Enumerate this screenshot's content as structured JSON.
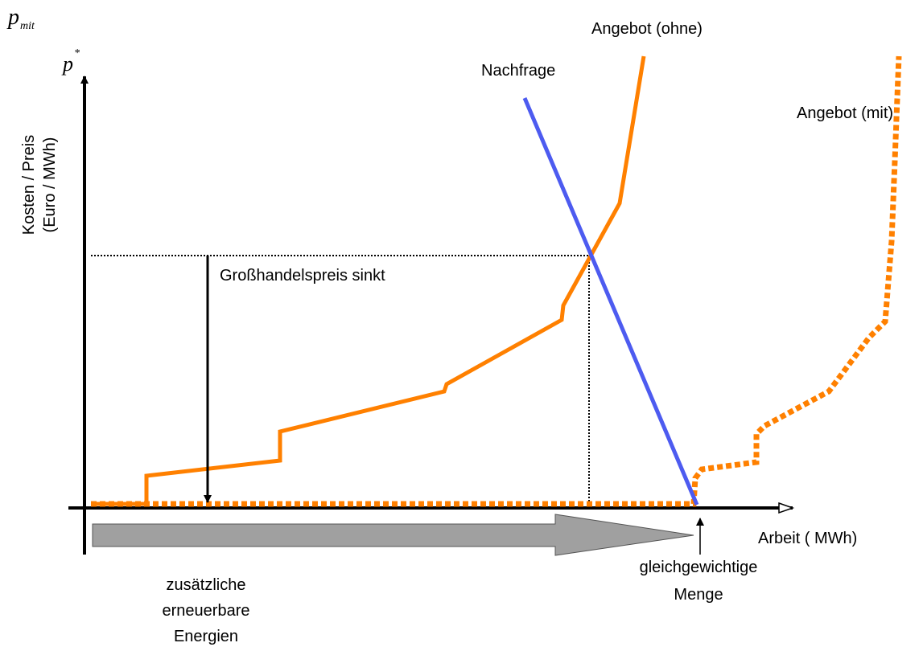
{
  "labels": {
    "p_mit": {
      "symbol": "p",
      "subscript": "mit"
    },
    "p_star": {
      "symbol": "p",
      "superscript": "*"
    },
    "y_axis": [
      "Kosten / Preis",
      "(Euro / MWh)"
    ],
    "x_axis": "Arbeit ( MWh)",
    "supply_without": "Angebot (ohne)",
    "demand": "Nachfrage",
    "supply_with": "Angebot (mit)",
    "price_drop": "Großhandelspreis sinkt",
    "equilibrium": [
      "gleichgewichtige",
      "Menge"
    ],
    "renewables": [
      "zusätzliche",
      "erneuerbare",
      "Energien"
    ]
  }
}
